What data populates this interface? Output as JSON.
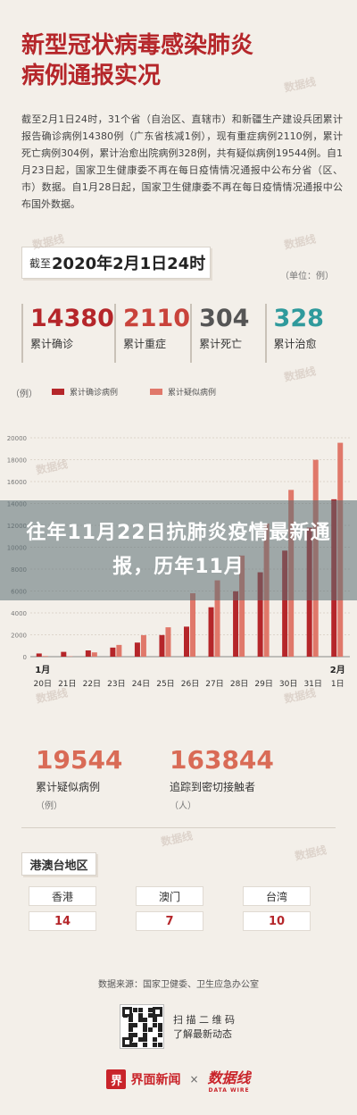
{
  "header": {
    "title_line1": "新型冠状病毒感染肺炎",
    "title_line2": "病例通报实况"
  },
  "intro": {
    "text": "截至2月1日24时，31个省（自治区、直辖市）和新疆生产建设兵团累计报告确诊病例14380例（广东省核减1例），现有重症病例2110例，累计死亡病例304例，累计治愈出院病例328例，共有疑似病例19544例。自1月23日起，国家卫生健康委不再在每日疫情情况通报中公布分省（区、市）数据。自1月28日起，国家卫生健康委不再在每日疫情情况通报中公布国外数据。"
  },
  "cutoff": {
    "prefix": "截至",
    "date": "2020年2月1日24时"
  },
  "unit_note": "（单位：例）",
  "stats": [
    {
      "value": "14380",
      "label": "累计确诊",
      "color": "#b5262a"
    },
    {
      "value": "2110",
      "label": "累计重症",
      "color": "#c9433b"
    },
    {
      "value": "304",
      "label": "累计死亡",
      "color": "#555555"
    },
    {
      "value": "328",
      "label": "累计治愈",
      "color": "#2f9a9c"
    }
  ],
  "chart_data": {
    "type": "bar",
    "ylabel": "（例）",
    "ylim": [
      0,
      20000
    ],
    "yticks": [
      0,
      2000,
      4000,
      6000,
      8000,
      10000,
      12000,
      14000,
      16000,
      18000,
      20000
    ],
    "month_labels": [
      {
        "label": "1月",
        "category": "20日"
      },
      {
        "label": "2月",
        "category": "1日"
      }
    ],
    "categories": [
      "20日",
      "21日",
      "22日",
      "23日",
      "24日",
      "25日",
      "26日",
      "27日",
      "28日",
      "29日",
      "30日",
      "31日",
      "1日"
    ],
    "series": [
      {
        "name": "累计确诊病例",
        "color": "#b5262a",
        "values": [
          291,
          440,
          571,
          830,
          1287,
          1975,
          2744,
          4515,
          5974,
          7711,
          9692,
          11791,
          14380
        ]
      },
      {
        "name": "累计疑似病例",
        "color": "#e0786a",
        "values": [
          54,
          37,
          393,
          1072,
          1965,
          2684,
          5794,
          6973,
          9239,
          12167,
          15238,
          17988,
          19544
        ]
      }
    ],
    "legend_position": "top"
  },
  "banner": {
    "text": "往年11月22日抗肺炎疫情最新通报，历年11月"
  },
  "bottom_stats": [
    {
      "value": "19544",
      "label": "累计疑似病例",
      "sub": "（例）"
    },
    {
      "value": "163844",
      "label": "追踪到密切接触者",
      "sub": "（人）"
    }
  ],
  "regions": {
    "title": "港澳台地区",
    "items": [
      {
        "name": "香港",
        "value": "14"
      },
      {
        "name": "澳门",
        "value": "7"
      },
      {
        "name": "台湾",
        "value": "10"
      }
    ]
  },
  "footer": {
    "source": "数据来源：国家卫健委、卫生应急办公室",
    "qr_line1": "扫 描 二 维 码",
    "qr_line2": "了解最新动态",
    "logo1_mark": "界",
    "logo1_name": "界面新闻",
    "times": "×",
    "logo2_name": "数据线",
    "logo2_sub": "DATA WIRE"
  },
  "watermark": "数据线"
}
